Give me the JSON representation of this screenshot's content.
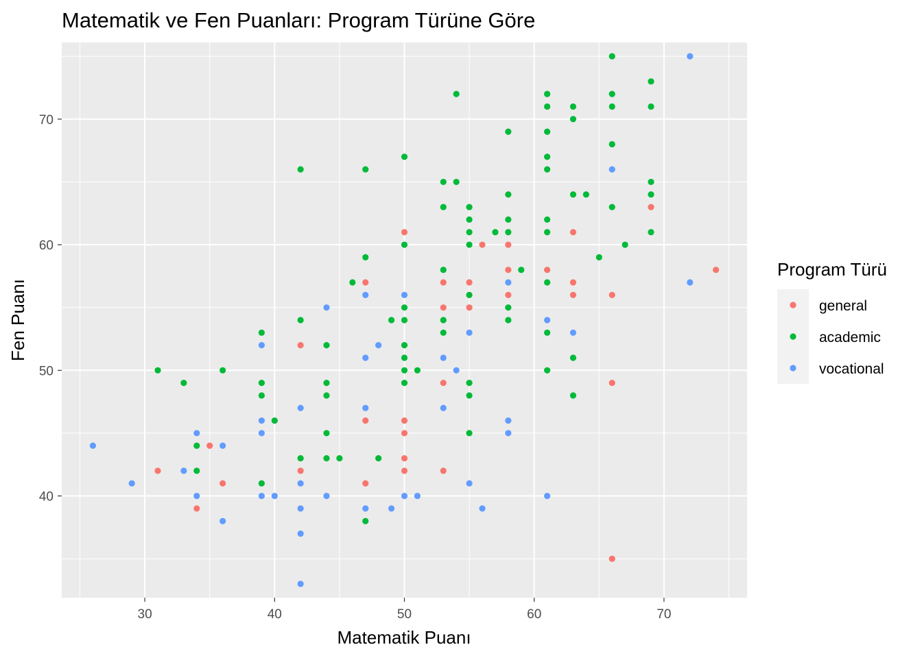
{
  "chart_data": {
    "type": "scatter",
    "title": "Matematik ve Fen Puanları: Program Türüne Göre",
    "xlabel": "Matematik Puanı",
    "ylabel": "Fen Puanı",
    "xlim": [
      23.6,
      76.4
    ],
    "ylim": [
      31.9,
      76.1
    ],
    "xticks": [
      30,
      40,
      50,
      60,
      70
    ],
    "yticks": [
      40,
      50,
      60,
      70
    ],
    "grid": true,
    "legend": {
      "title": "Program Türü",
      "position": "right"
    },
    "series": [
      {
        "name": "general",
        "color": "#F8766D",
        "points": [
          [
            31,
            42
          ],
          [
            34,
            39
          ],
          [
            35,
            44
          ],
          [
            36,
            41
          ],
          [
            42,
            52
          ],
          [
            42,
            42
          ],
          [
            47,
            57
          ],
          [
            47,
            46
          ],
          [
            47,
            41
          ],
          [
            50,
            61
          ],
          [
            50,
            46
          ],
          [
            50,
            45
          ],
          [
            50,
            43
          ],
          [
            50,
            42
          ],
          [
            53,
            57
          ],
          [
            53,
            55
          ],
          [
            53,
            49
          ],
          [
            53,
            42
          ],
          [
            55,
            57
          ],
          [
            55,
            55
          ],
          [
            56,
            60
          ],
          [
            58,
            60
          ],
          [
            58,
            58
          ],
          [
            58,
            56
          ],
          [
            61,
            58
          ],
          [
            63,
            61
          ],
          [
            63,
            57
          ],
          [
            63,
            56
          ],
          [
            66,
            56
          ],
          [
            66,
            49
          ],
          [
            66,
            35
          ],
          [
            69,
            63
          ],
          [
            74,
            58
          ]
        ]
      },
      {
        "name": "academic",
        "color": "#00BA38",
        "points": [
          [
            31,
            50
          ],
          [
            33,
            49
          ],
          [
            34,
            44
          ],
          [
            34,
            42
          ],
          [
            36,
            50
          ],
          [
            39,
            53
          ],
          [
            39,
            49
          ],
          [
            39,
            48
          ],
          [
            39,
            41
          ],
          [
            40,
            46
          ],
          [
            42,
            66
          ],
          [
            42,
            54
          ],
          [
            42,
            43
          ],
          [
            44,
            52
          ],
          [
            44,
            49
          ],
          [
            44,
            48
          ],
          [
            44,
            45
          ],
          [
            44,
            43
          ],
          [
            45,
            43
          ],
          [
            46,
            57
          ],
          [
            47,
            66
          ],
          [
            47,
            59
          ],
          [
            47,
            38
          ],
          [
            48,
            43
          ],
          [
            49,
            54
          ],
          [
            50,
            67
          ],
          [
            50,
            60
          ],
          [
            50,
            55
          ],
          [
            50,
            54
          ],
          [
            50,
            52
          ],
          [
            50,
            51
          ],
          [
            50,
            50
          ],
          [
            50,
            49
          ],
          [
            51,
            50
          ],
          [
            53,
            65
          ],
          [
            53,
            63
          ],
          [
            53,
            58
          ],
          [
            53,
            54
          ],
          [
            53,
            53
          ],
          [
            54,
            72
          ],
          [
            54,
            65
          ],
          [
            55,
            63
          ],
          [
            55,
            62
          ],
          [
            55,
            61
          ],
          [
            55,
            60
          ],
          [
            55,
            56
          ],
          [
            55,
            49
          ],
          [
            55,
            48
          ],
          [
            55,
            45
          ],
          [
            57,
            61
          ],
          [
            58,
            69
          ],
          [
            58,
            64
          ],
          [
            58,
            62
          ],
          [
            58,
            61
          ],
          [
            58,
            55
          ],
          [
            58,
            54
          ],
          [
            59,
            58
          ],
          [
            61,
            72
          ],
          [
            61,
            71
          ],
          [
            61,
            69
          ],
          [
            61,
            67
          ],
          [
            61,
            66
          ],
          [
            61,
            62
          ],
          [
            61,
            61
          ],
          [
            61,
            57
          ],
          [
            61,
            53
          ],
          [
            61,
            50
          ],
          [
            63,
            71
          ],
          [
            63,
            70
          ],
          [
            63,
            64
          ],
          [
            63,
            51
          ],
          [
            63,
            48
          ],
          [
            64,
            64
          ],
          [
            65,
            59
          ],
          [
            66,
            75
          ],
          [
            66,
            72
          ],
          [
            66,
            71
          ],
          [
            66,
            68
          ],
          [
            66,
            63
          ],
          [
            67,
            60
          ],
          [
            69,
            73
          ],
          [
            69,
            71
          ],
          [
            69,
            65
          ],
          [
            69,
            64
          ],
          [
            69,
            61
          ]
        ]
      },
      {
        "name": "vocational",
        "color": "#619CFF",
        "points": [
          [
            26,
            44
          ],
          [
            29,
            41
          ],
          [
            33,
            42
          ],
          [
            34,
            45
          ],
          [
            34,
            40
          ],
          [
            36,
            44
          ],
          [
            36,
            38
          ],
          [
            39,
            52
          ],
          [
            39,
            46
          ],
          [
            39,
            45
          ],
          [
            39,
            40
          ],
          [
            40,
            40
          ],
          [
            42,
            47
          ],
          [
            42,
            41
          ],
          [
            42,
            39
          ],
          [
            42,
            37
          ],
          [
            42,
            33
          ],
          [
            44,
            55
          ],
          [
            44,
            40
          ],
          [
            47,
            56
          ],
          [
            47,
            51
          ],
          [
            47,
            47
          ],
          [
            47,
            39
          ],
          [
            48,
            52
          ],
          [
            49,
            39
          ],
          [
            50,
            56
          ],
          [
            50,
            40
          ],
          [
            51,
            40
          ],
          [
            53,
            51
          ],
          [
            53,
            47
          ],
          [
            54,
            50
          ],
          [
            55,
            53
          ],
          [
            55,
            41
          ],
          [
            56,
            39
          ],
          [
            58,
            57
          ],
          [
            58,
            46
          ],
          [
            58,
            45
          ],
          [
            61,
            54
          ],
          [
            61,
            40
          ],
          [
            63,
            53
          ],
          [
            66,
            66
          ],
          [
            72,
            75
          ],
          [
            72,
            57
          ]
        ]
      }
    ]
  }
}
